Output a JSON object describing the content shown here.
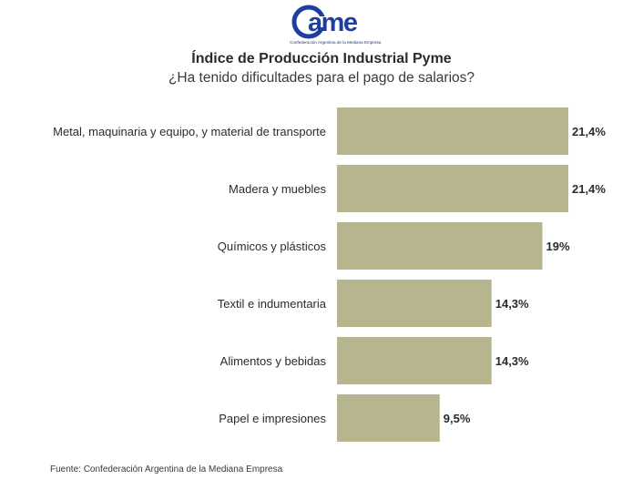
{
  "logo": {
    "text": "came",
    "tagline": "Confederación Argentina de la Mediana Empresa",
    "color": "#1f3fa0"
  },
  "header": {
    "title": "Índice de Producción Industrial Pyme",
    "subtitle": "¿Ha tenido dificultades para el pago de salarios?"
  },
  "chart_data": {
    "type": "bar",
    "orientation": "horizontal",
    "title": "Índice de Producción Industrial Pyme",
    "subtitle": "¿Ha tenido dificultades para el pago de salarios?",
    "categories": [
      "Metal, maquinaria y equipo, y material de transporte",
      "Madera y muebles",
      "Químicos y plásticos",
      "Textil e indumentaria",
      "Alimentos y bebidas",
      "Papel e impresiones"
    ],
    "values": [
      21.4,
      21.4,
      19,
      14.3,
      14.3,
      9.5
    ],
    "value_labels": [
      "21,4%",
      "21,4%",
      "19%",
      "14,3%",
      "14,3%",
      "9,5%"
    ],
    "unit": "%",
    "xlim": [
      0,
      30
    ],
    "grid": false,
    "legend": "none",
    "bar_color": "#b6b58e"
  },
  "footer": {
    "source": "Fuente: Confederación Argentina de la Mediana Empresa"
  }
}
